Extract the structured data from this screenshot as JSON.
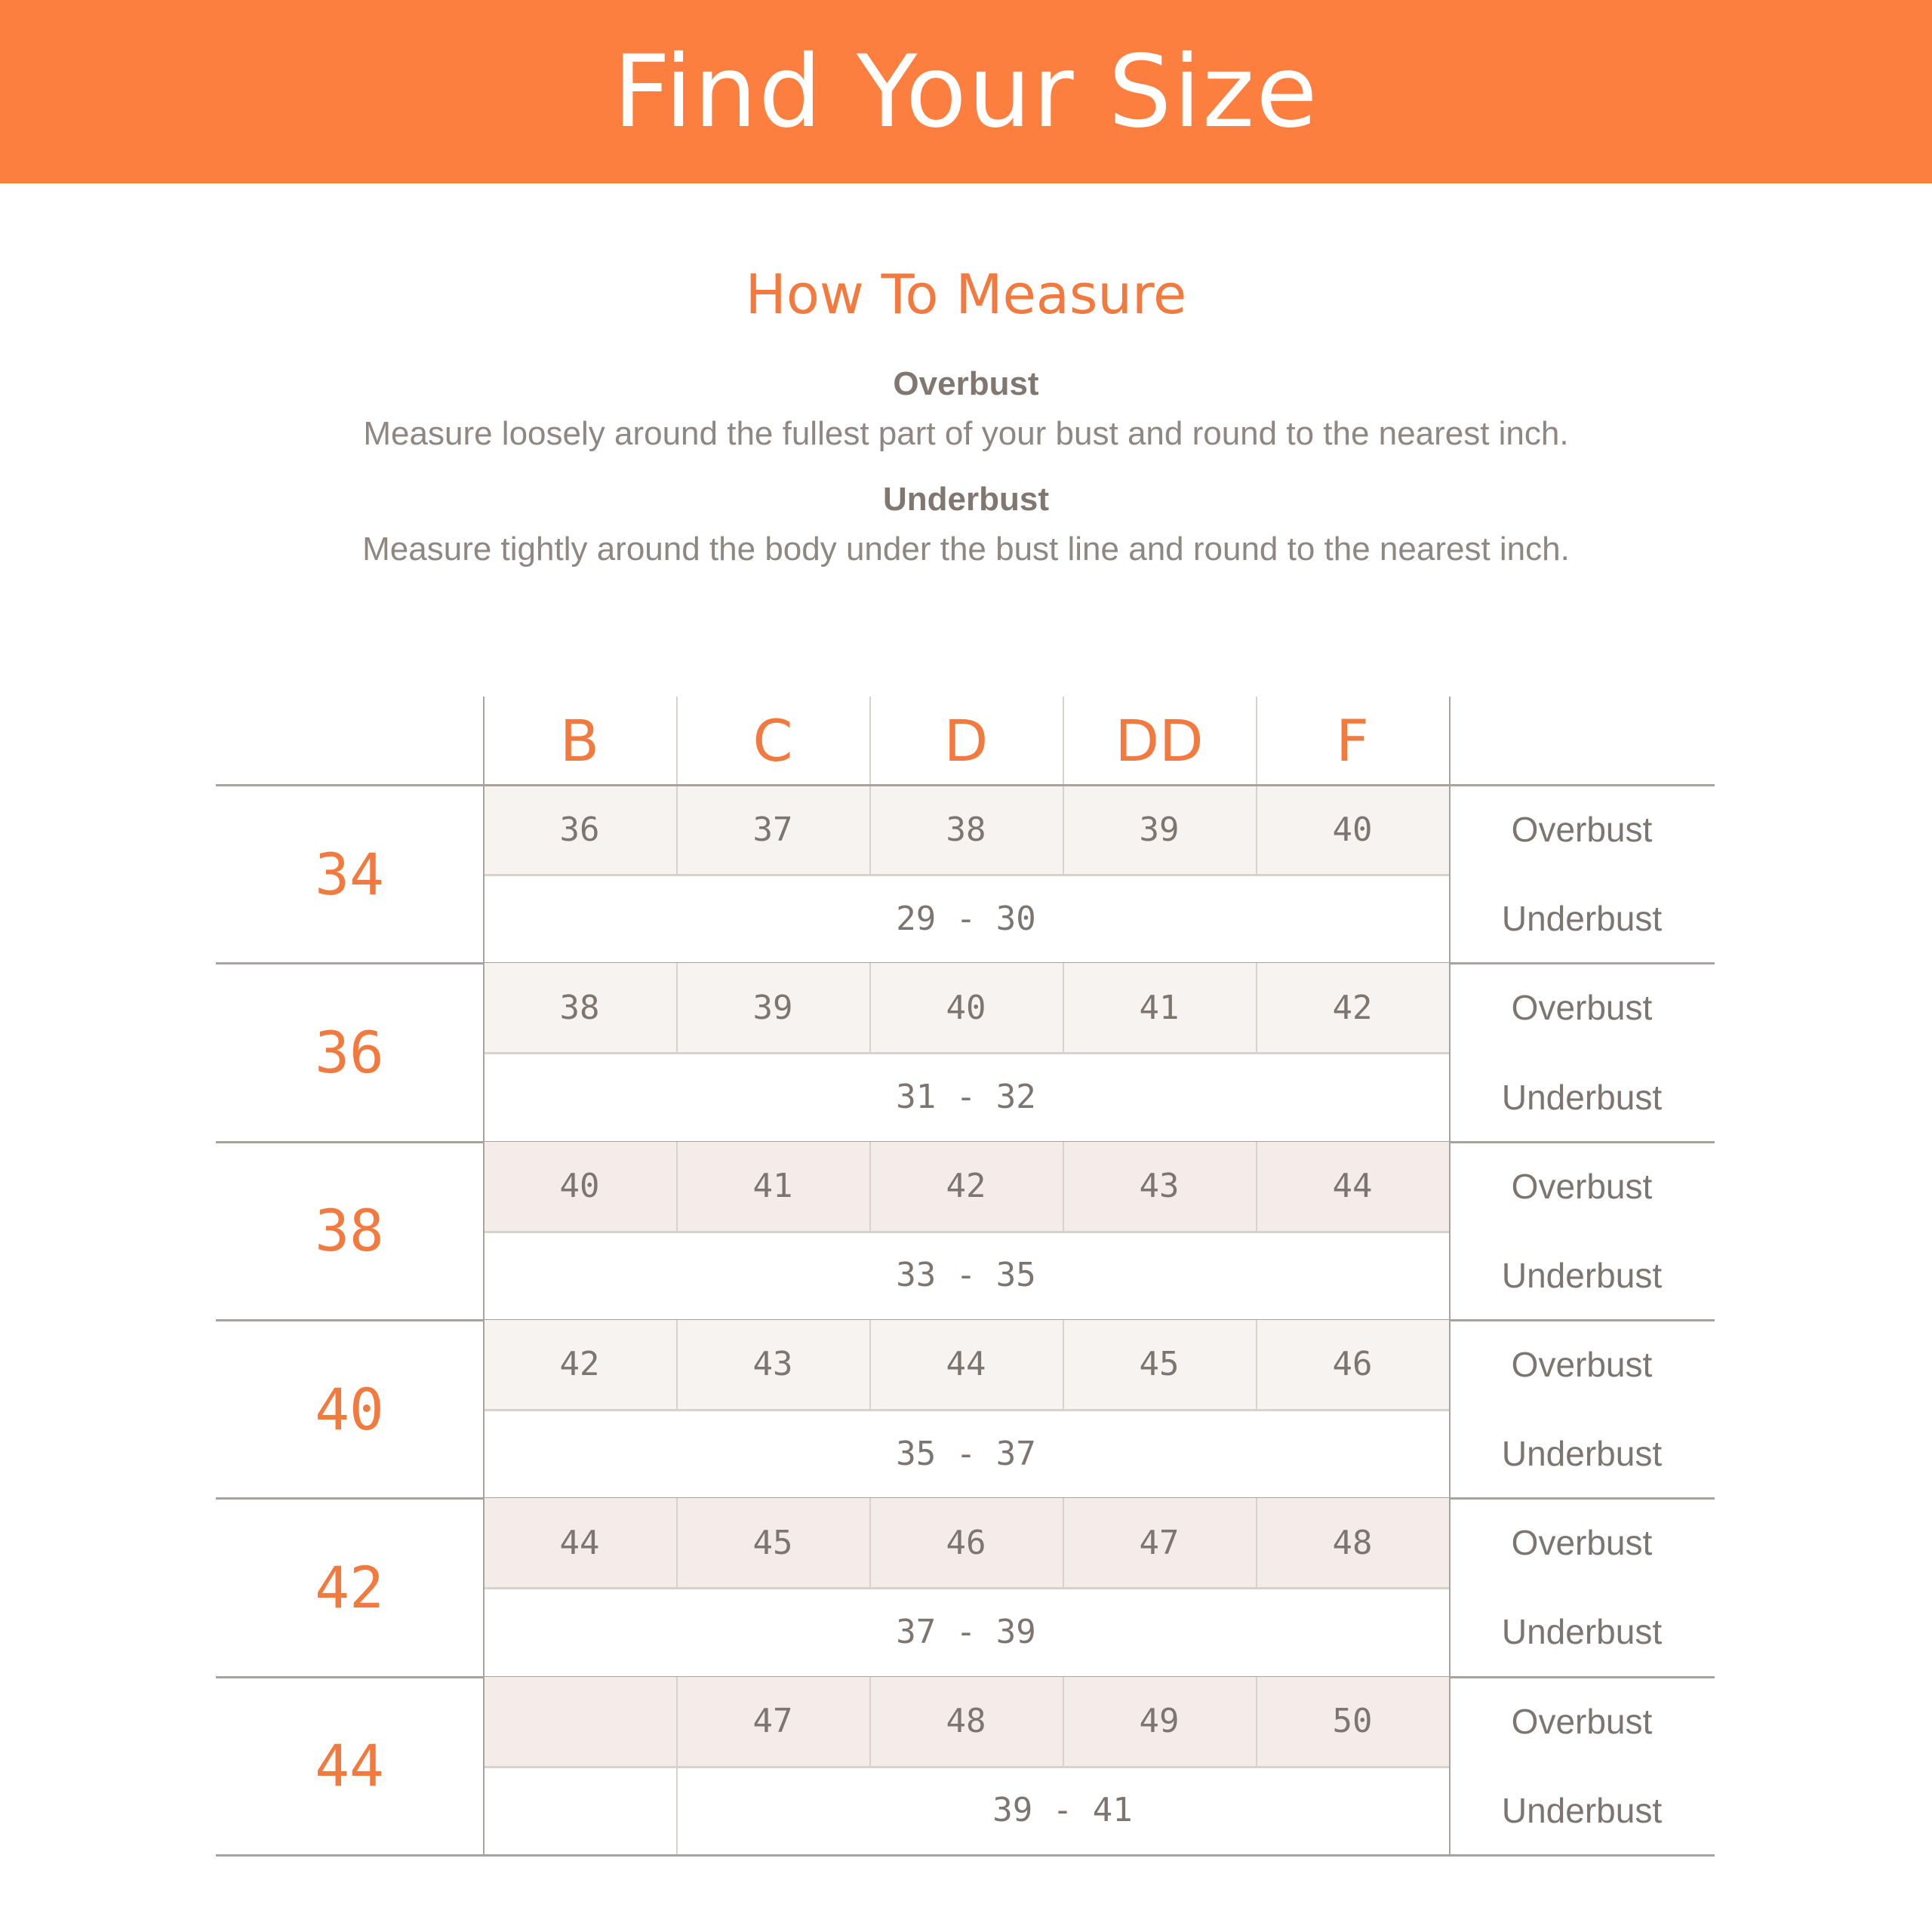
{
  "header": {
    "title": "Find Your Size",
    "color": "#fd7f40"
  },
  "how_to": {
    "title": "How To Measure",
    "overbust_label": "Overbust",
    "overbust_text": "Measure loosely around the fullest part of your bust and round to the nearest inch.",
    "underbust_label": "Underbust",
    "underbust_text": "Measure tightly around the body under the bust line and round to the nearest inch."
  },
  "table": {
    "cups": [
      "B",
      "C",
      "D",
      "DD",
      "F"
    ],
    "row_labels": {
      "overbust": "Overbust",
      "underbust": "Underbust"
    },
    "rows": [
      {
        "band": "34",
        "overbust": [
          "36",
          "37",
          "38",
          "39",
          "40"
        ],
        "underbust": "29 - 30",
        "shade": "#f6f3f0"
      },
      {
        "band": "36",
        "overbust": [
          "38",
          "39",
          "40",
          "41",
          "42"
        ],
        "underbust": "31 - 32",
        "shade": "#f6f3f0"
      },
      {
        "band": "38",
        "overbust": [
          "40",
          "41",
          "42",
          "43",
          "44"
        ],
        "underbust": "33 - 35",
        "shade": "#f5ebe8"
      },
      {
        "band": "40",
        "overbust": [
          "42",
          "43",
          "44",
          "45",
          "46"
        ],
        "underbust": "35 - 37",
        "shade": "#f6f3f0"
      },
      {
        "band": "42",
        "overbust": [
          "44",
          "45",
          "46",
          "47",
          "48"
        ],
        "underbust": "37 - 39",
        "shade": "#f5ebe8"
      },
      {
        "band": "44",
        "overbust": [
          "",
          "47",
          "48",
          "49",
          "50"
        ],
        "underbust": "39 - 41",
        "shade": "#f5ebe8"
      }
    ]
  }
}
